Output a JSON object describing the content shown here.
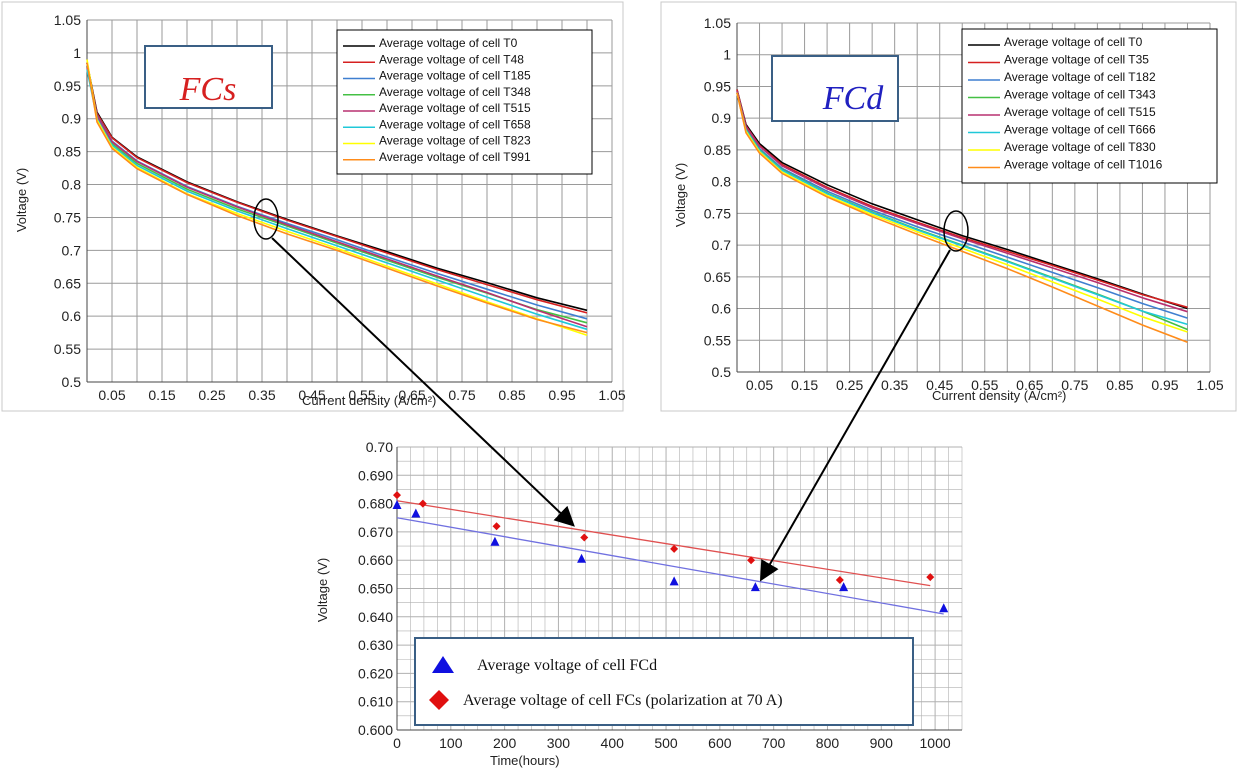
{
  "colors": {
    "series": [
      "#000000",
      "#d62020",
      "#3f7fd0",
      "#44c044",
      "#b83070",
      "#20c8d8",
      "#ffff00",
      "#ff8c1a"
    ],
    "grid": "#9a9a9a",
    "fcs_tag": "#d62020",
    "fcd_tag": "#2020c0",
    "trend_fcs": "#e05050",
    "trend_fcd": "#7070e0",
    "marker_fcd": "#1010e0",
    "marker_fcs": "#e01010",
    "box_border": "#3a5f85"
  },
  "chart_data": [
    {
      "id": "fcs",
      "type": "line",
      "tag": "FCs",
      "xlabel": "Current density (A/cm²)",
      "ylabel": "Voltage (V)",
      "xlim": [
        0,
        1.05
      ],
      "ylim": [
        0.5,
        1.05
      ],
      "grid": true,
      "legend_position": "top-right",
      "y_ticks": [
        "0.5",
        "0.55",
        "0.6",
        "0.65",
        "0.7",
        "0.75",
        "0.8",
        "0.85",
        "0.9",
        "0.95",
        "1",
        "1.05"
      ],
      "x_ticks": [
        "0.05",
        "0.15",
        "0.25",
        "0.35",
        "0.45",
        "0.55",
        "0.65",
        "0.75",
        "0.85",
        "0.95",
        "1.05"
      ],
      "series": [
        {
          "name": "Average voltage of cell T0",
          "points": [
            [
              0,
              0.985
            ],
            [
              0.02,
              0.91
            ],
            [
              0.05,
              0.872
            ],
            [
              0.1,
              0.842
            ],
            [
              0.2,
              0.804
            ],
            [
              0.3,
              0.774
            ],
            [
              0.4,
              0.747
            ],
            [
              0.5,
              0.722
            ],
            [
              0.6,
              0.698
            ],
            [
              0.7,
              0.673
            ],
            [
              0.8,
              0.651
            ],
            [
              0.9,
              0.628
            ],
            [
              1.0,
              0.609
            ]
          ]
        },
        {
          "name": "Average voltage of cell T48",
          "points": [
            [
              0,
              0.985
            ],
            [
              0.02,
              0.908
            ],
            [
              0.05,
              0.871
            ],
            [
              0.1,
              0.841
            ],
            [
              0.2,
              0.803
            ],
            [
              0.3,
              0.773
            ],
            [
              0.4,
              0.746
            ],
            [
              0.5,
              0.721
            ],
            [
              0.6,
              0.696
            ],
            [
              0.7,
              0.671
            ],
            [
              0.8,
              0.648
            ],
            [
              0.9,
              0.625
            ],
            [
              1.0,
              0.605
            ]
          ]
        },
        {
          "name": "Average voltage of cell T185",
          "points": [
            [
              0,
              0.98
            ],
            [
              0.02,
              0.905
            ],
            [
              0.05,
              0.866
            ],
            [
              0.1,
              0.836
            ],
            [
              0.2,
              0.797
            ],
            [
              0.3,
              0.767
            ],
            [
              0.4,
              0.741
            ],
            [
              0.5,
              0.716
            ],
            [
              0.6,
              0.69
            ],
            [
              0.7,
              0.665
            ],
            [
              0.8,
              0.641
            ],
            [
              0.9,
              0.617
            ],
            [
              1.0,
              0.596
            ]
          ]
        },
        {
          "name": "Average voltage of cell T348",
          "points": [
            [
              0,
              0.98
            ],
            [
              0.02,
              0.902
            ],
            [
              0.05,
              0.862
            ],
            [
              0.1,
              0.832
            ],
            [
              0.2,
              0.793
            ],
            [
              0.3,
              0.763
            ],
            [
              0.4,
              0.737
            ],
            [
              0.5,
              0.711
            ],
            [
              0.6,
              0.685
            ],
            [
              0.7,
              0.659
            ],
            [
              0.8,
              0.635
            ],
            [
              0.9,
              0.61
            ],
            [
              1.0,
              0.59
            ]
          ]
        },
        {
          "name": "Average voltage of cell T515",
          "points": [
            [
              0,
              0.978
            ],
            [
              0.02,
              0.904
            ],
            [
              0.05,
              0.865
            ],
            [
              0.1,
              0.835
            ],
            [
              0.2,
              0.796
            ],
            [
              0.3,
              0.766
            ],
            [
              0.4,
              0.739
            ],
            [
              0.5,
              0.713
            ],
            [
              0.6,
              0.687
            ],
            [
              0.7,
              0.661
            ],
            [
              0.8,
              0.636
            ],
            [
              0.9,
              0.609
            ],
            [
              1.0,
              0.584
            ]
          ]
        },
        {
          "name": "Average voltage of cell T658",
          "points": [
            [
              0,
              0.975
            ],
            [
              0.02,
              0.9
            ],
            [
              0.05,
              0.86
            ],
            [
              0.1,
              0.829
            ],
            [
              0.2,
              0.79
            ],
            [
              0.3,
              0.76
            ],
            [
              0.4,
              0.733
            ],
            [
              0.5,
              0.707
            ],
            [
              0.6,
              0.681
            ],
            [
              0.7,
              0.655
            ],
            [
              0.8,
              0.629
            ],
            [
              0.9,
              0.603
            ],
            [
              1.0,
              0.58
            ]
          ]
        },
        {
          "name": "Average voltage of cell T823",
          "points": [
            [
              0,
              0.99
            ],
            [
              0.02,
              0.898
            ],
            [
              0.05,
              0.857
            ],
            [
              0.1,
              0.826
            ],
            [
              0.2,
              0.786
            ],
            [
              0.3,
              0.756
            ],
            [
              0.4,
              0.729
            ],
            [
              0.5,
              0.703
            ],
            [
              0.6,
              0.676
            ],
            [
              0.7,
              0.649
            ],
            [
              0.8,
              0.622
            ],
            [
              0.9,
              0.596
            ],
            [
              1.0,
              0.571
            ]
          ]
        },
        {
          "name": "Average voltage of cell T991",
          "points": [
            [
              0,
              0.985
            ],
            [
              0.02,
              0.895
            ],
            [
              0.05,
              0.855
            ],
            [
              0.1,
              0.824
            ],
            [
              0.2,
              0.785
            ],
            [
              0.3,
              0.753
            ],
            [
              0.4,
              0.725
            ],
            [
              0.5,
              0.7
            ],
            [
              0.6,
              0.673
            ],
            [
              0.7,
              0.646
            ],
            [
              0.8,
              0.62
            ],
            [
              0.9,
              0.595
            ],
            [
              1.0,
              0.575
            ]
          ]
        }
      ]
    },
    {
      "id": "fcd",
      "type": "line",
      "tag": "FCd",
      "xlabel": "Current density (A/cm²)",
      "ylabel": "Voltage (V)",
      "xlim": [
        0,
        1.05
      ],
      "ylim": [
        0.5,
        1.05
      ],
      "grid": true,
      "legend_position": "top-right",
      "y_ticks": [
        "0.5",
        "0.55",
        "0.6",
        "0.65",
        "0.7",
        "0.75",
        "0.8",
        "0.85",
        "0.9",
        "0.95",
        "1",
        "1.05"
      ],
      "x_ticks": [
        "0.05",
        "0.15",
        "0.25",
        "0.35",
        "0.45",
        "0.55",
        "0.65",
        "0.75",
        "0.85",
        "0.95",
        "1.05"
      ],
      "series": [
        {
          "name": "Average voltage of cell T0",
          "points": [
            [
              0,
              0.945
            ],
            [
              0.02,
              0.89
            ],
            [
              0.05,
              0.86
            ],
            [
              0.1,
              0.83
            ],
            [
              0.2,
              0.795
            ],
            [
              0.3,
              0.765
            ],
            [
              0.4,
              0.74
            ],
            [
              0.5,
              0.715
            ],
            [
              0.6,
              0.693
            ],
            [
              0.7,
              0.67
            ],
            [
              0.8,
              0.647
            ],
            [
              0.9,
              0.623
            ],
            [
              1.0,
              0.6
            ]
          ]
        },
        {
          "name": "Average voltage of cell T35",
          "points": [
            [
              0,
              0.945
            ],
            [
              0.02,
              0.888
            ],
            [
              0.05,
              0.857
            ],
            [
              0.1,
              0.827
            ],
            [
              0.2,
              0.791
            ],
            [
              0.3,
              0.761
            ],
            [
              0.4,
              0.736
            ],
            [
              0.5,
              0.712
            ],
            [
              0.6,
              0.69
            ],
            [
              0.7,
              0.668
            ],
            [
              0.8,
              0.645
            ],
            [
              0.9,
              0.622
            ],
            [
              1.0,
              0.602
            ]
          ]
        },
        {
          "name": "Average voltage of cell T182",
          "points": [
            [
              0,
              0.942
            ],
            [
              0.02,
              0.884
            ],
            [
              0.05,
              0.852
            ],
            [
              0.1,
              0.821
            ],
            [
              0.2,
              0.785
            ],
            [
              0.3,
              0.755
            ],
            [
              0.4,
              0.729
            ],
            [
              0.5,
              0.705
            ],
            [
              0.6,
              0.681
            ],
            [
              0.7,
              0.657
            ],
            [
              0.8,
              0.633
            ],
            [
              0.9,
              0.608
            ],
            [
              1.0,
              0.585
            ]
          ]
        },
        {
          "name": "Average voltage of cell T343",
          "points": [
            [
              0,
              0.94
            ],
            [
              0.02,
              0.882
            ],
            [
              0.05,
              0.85
            ],
            [
              0.1,
              0.819
            ],
            [
              0.2,
              0.782
            ],
            [
              0.3,
              0.752
            ],
            [
              0.4,
              0.725
            ],
            [
              0.5,
              0.7
            ],
            [
              0.6,
              0.675
            ],
            [
              0.7,
              0.649
            ],
            [
              0.8,
              0.623
            ],
            [
              0.9,
              0.596
            ],
            [
              1.0,
              0.567
            ]
          ]
        },
        {
          "name": "Average voltage of cell T515",
          "points": [
            [
              0,
              0.943
            ],
            [
              0.02,
              0.887
            ],
            [
              0.05,
              0.856
            ],
            [
              0.1,
              0.825
            ],
            [
              0.2,
              0.789
            ],
            [
              0.3,
              0.759
            ],
            [
              0.4,
              0.734
            ],
            [
              0.5,
              0.71
            ],
            [
              0.6,
              0.687
            ],
            [
              0.7,
              0.664
            ],
            [
              0.8,
              0.641
            ],
            [
              0.9,
              0.617
            ],
            [
              1.0,
              0.595
            ]
          ]
        },
        {
          "name": "Average voltage of cell T666",
          "points": [
            [
              0,
              0.94
            ],
            [
              0.02,
              0.881
            ],
            [
              0.05,
              0.849
            ],
            [
              0.1,
              0.818
            ],
            [
              0.2,
              0.781
            ],
            [
              0.3,
              0.751
            ],
            [
              0.4,
              0.724
            ],
            [
              0.5,
              0.699
            ],
            [
              0.6,
              0.674
            ],
            [
              0.7,
              0.648
            ],
            [
              0.8,
              0.622
            ],
            [
              0.9,
              0.596
            ],
            [
              1.0,
              0.575
            ]
          ]
        },
        {
          "name": "Average voltage of cell T830",
          "points": [
            [
              0,
              0.94
            ],
            [
              0.02,
              0.879
            ],
            [
              0.05,
              0.847
            ],
            [
              0.1,
              0.815
            ],
            [
              0.2,
              0.778
            ],
            [
              0.3,
              0.748
            ],
            [
              0.4,
              0.721
            ],
            [
              0.5,
              0.695
            ],
            [
              0.6,
              0.669
            ],
            [
              0.7,
              0.642
            ],
            [
              0.8,
              0.615
            ],
            [
              0.9,
              0.587
            ],
            [
              1.0,
              0.563
            ]
          ]
        },
        {
          "name": "Average voltage of cell T1016",
          "points": [
            [
              0,
              0.94
            ],
            [
              0.02,
              0.877
            ],
            [
              0.05,
              0.845
            ],
            [
              0.1,
              0.813
            ],
            [
              0.2,
              0.776
            ],
            [
              0.3,
              0.745
            ],
            [
              0.4,
              0.717
            ],
            [
              0.5,
              0.69
            ],
            [
              0.6,
              0.663
            ],
            [
              0.7,
              0.634
            ],
            [
              0.8,
              0.604
            ],
            [
              0.9,
              0.574
            ],
            [
              1.0,
              0.547
            ]
          ]
        }
      ]
    },
    {
      "id": "time",
      "type": "scatter",
      "xlabel": "Time(hours)",
      "ylabel": "Voltage (V)",
      "xlim": [
        0,
        1050
      ],
      "ylim": [
        0.6,
        0.7
      ],
      "grid": true,
      "legend_position": "bottom-left",
      "y_ticks": [
        "0.600",
        "0.610",
        "0.620",
        "0.630",
        "0.640",
        "0.650",
        "0.660",
        "0.670",
        "0.680",
        "0.690",
        "0.70"
      ],
      "x_ticks": [
        "0",
        "100",
        "200",
        "300",
        "400",
        "500",
        "600",
        "700",
        "800",
        "900",
        "1000"
      ],
      "series": [
        {
          "name": "Average voltage of cell FCd",
          "marker": "triangle",
          "x": [
            0,
            35,
            182,
            343,
            515,
            666,
            830,
            1016
          ],
          "y": [
            0.6795,
            0.6765,
            0.6665,
            0.6605,
            0.6525,
            0.6505,
            0.6505,
            0.643
          ],
          "trend": [
            [
              0,
              0.675
            ],
            [
              1016,
              0.641
            ]
          ]
        },
        {
          "name": "Average voltage of cell FCs (polarization at 70 A)",
          "marker": "diamond",
          "x": [
            0,
            48,
            185,
            348,
            515,
            658,
            823,
            991
          ],
          "y": [
            0.683,
            0.68,
            0.672,
            0.668,
            0.664,
            0.66,
            0.653,
            0.654
          ],
          "trend": [
            [
              0,
              0.681
            ],
            [
              991,
              0.651
            ]
          ]
        }
      ]
    }
  ]
}
